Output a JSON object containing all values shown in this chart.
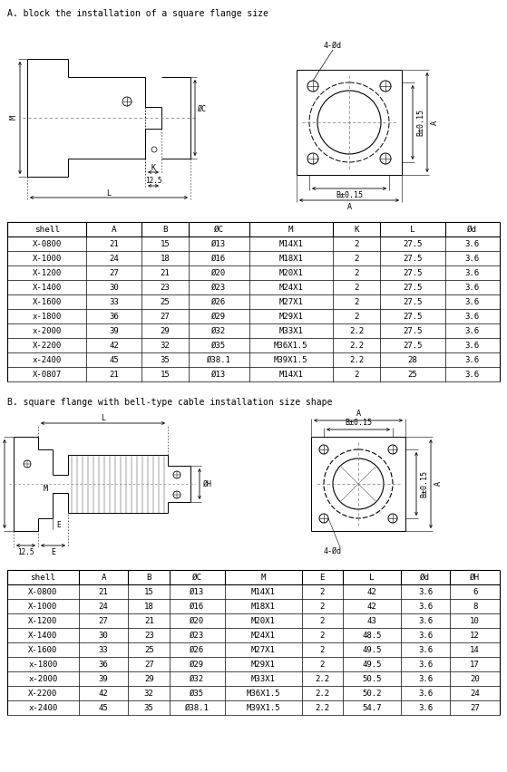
{
  "title_a": "A. block the installation of a square flange size",
  "title_b": "B. square flange with bell-type cable installation size shape",
  "table_a_headers": [
    "shell",
    "A",
    "B",
    "ØC",
    "M",
    "K",
    "L",
    "Ød"
  ],
  "table_a_rows": [
    [
      "X-0800",
      "21",
      "15",
      "Ø13",
      "M14X1",
      "2",
      "27.5",
      "3.6"
    ],
    [
      "X-1000",
      "24",
      "18",
      "Ø16",
      "M18X1",
      "2",
      "27.5",
      "3.6"
    ],
    [
      "X-1200",
      "27",
      "21",
      "Ø20",
      "M20X1",
      "2",
      "27.5",
      "3.6"
    ],
    [
      "X-1400",
      "30",
      "23",
      "Ø23",
      "M24X1",
      "2",
      "27.5",
      "3.6"
    ],
    [
      "X-1600",
      "33",
      "25",
      "Ø26",
      "M27X1",
      "2",
      "27.5",
      "3.6"
    ],
    [
      "x-1800",
      "36",
      "27",
      "Ø29",
      "M29X1",
      "2",
      "27.5",
      "3.6"
    ],
    [
      "x-2000",
      "39",
      "29",
      "Ø32",
      "M33X1",
      "2.2",
      "27.5",
      "3.6"
    ],
    [
      "X-2200",
      "42",
      "32",
      "Ø35",
      "M36X1.5",
      "2.2",
      "27.5",
      "3.6"
    ],
    [
      "x-2400",
      "45",
      "35",
      "Ø38.1",
      "M39X1.5",
      "2.2",
      "28",
      "3.6"
    ],
    [
      "X-0807",
      "21",
      "15",
      "Ø13",
      "M14X1",
      "2",
      "25",
      "3.6"
    ]
  ],
  "table_b_headers": [
    "shell",
    "A",
    "B",
    "ØC",
    "M",
    "E",
    "L",
    "Ød",
    "ØH"
  ],
  "table_b_rows": [
    [
      "X-0800",
      "21",
      "15",
      "Ø13",
      "M14X1",
      "2",
      "42",
      "3.6",
      "6"
    ],
    [
      "X-1000",
      "24",
      "18",
      "Ø16",
      "M18X1",
      "2",
      "42",
      "3.6",
      "8"
    ],
    [
      "X-1200",
      "27",
      "21",
      "Ø20",
      "M20X1",
      "2",
      "43",
      "3.6",
      "10"
    ],
    [
      "X-1400",
      "30",
      "23",
      "Ø23",
      "M24X1",
      "2",
      "48.5",
      "3.6",
      "12"
    ],
    [
      "X-1600",
      "33",
      "25",
      "Ø26",
      "M27X1",
      "2",
      "49.5",
      "3.6",
      "14"
    ],
    [
      "x-1800",
      "36",
      "27",
      "Ø29",
      "M29X1",
      "2",
      "49.5",
      "3.6",
      "17"
    ],
    [
      "x-2000",
      "39",
      "29",
      "Ø32",
      "M33X1",
      "2.2",
      "50.5",
      "3.6",
      "20"
    ],
    [
      "X-2200",
      "42",
      "32",
      "Ø35",
      "M36X1.5",
      "2.2",
      "50.2",
      "3.6",
      "24"
    ],
    [
      "x-2400",
      "45",
      "35",
      "Ø38.1",
      "M39X1.5",
      "2.2",
      "54.7",
      "3.6",
      "27"
    ]
  ],
  "bg_color": "#ffffff",
  "line_color": "#000000",
  "font_size_title": 7.0,
  "font_size_table": 6.5,
  "font_size_label": 6.0
}
